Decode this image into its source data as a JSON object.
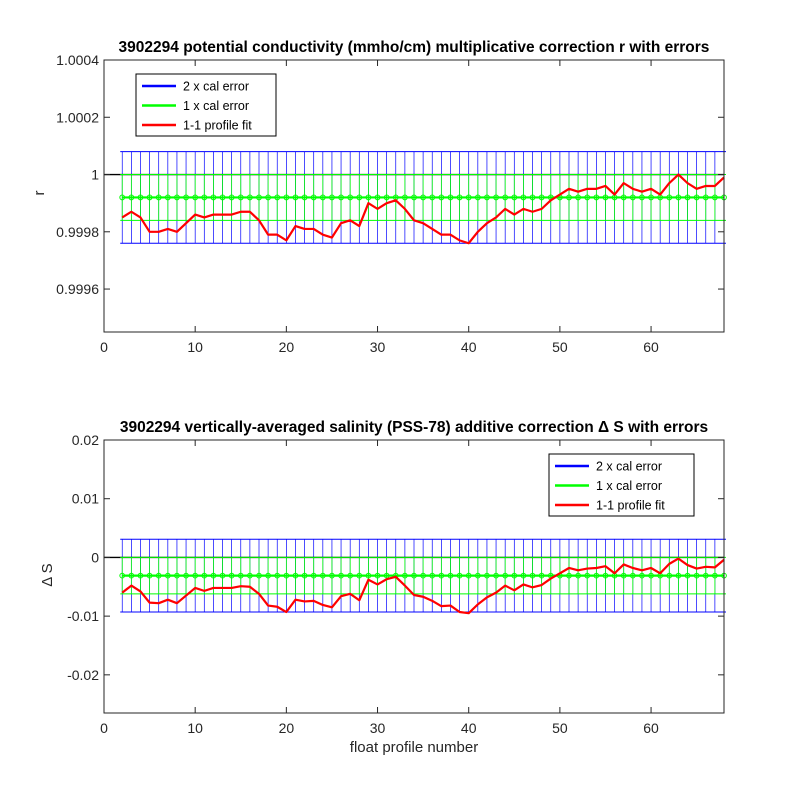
{
  "chart_data": [
    {
      "type": "line",
      "title": "3902294 potential conductivity (mmho/cm) multiplicative correction r with errors",
      "xlabel": "",
      "ylabel": "r",
      "xlim": [
        0,
        68
      ],
      "ylim": [
        0.99945,
        1.0004
      ],
      "xticks": [
        0,
        10,
        20,
        30,
        40,
        50,
        60
      ],
      "yticks": [
        0.9996,
        0.9998,
        1,
        1.0002,
        1.0004
      ],
      "ytick_labels": [
        "0.9996",
        "0.9998",
        "1",
        "1.0002",
        "1.0004"
      ],
      "reference_line": 1,
      "legend_position": "top-left",
      "legend": [
        "2 x cal error",
        "1 x cal error",
        "1-1 profile fit"
      ],
      "error_band": {
        "x_range": [
          2,
          68
        ],
        "center": 0.99992,
        "two_x_half_width": 0.00016,
        "one_x_half_width": 8e-05
      },
      "series": [
        {
          "name": "1-1 profile fit",
          "color": "#ff0000",
          "x": [
            2,
            3,
            4,
            5,
            6,
            7,
            8,
            9,
            10,
            11,
            12,
            13,
            14,
            15,
            16,
            17,
            18,
            19,
            20,
            21,
            22,
            23,
            24,
            25,
            26,
            27,
            28,
            29,
            30,
            31,
            32,
            33,
            34,
            35,
            36,
            37,
            38,
            39,
            40,
            41,
            42,
            43,
            44,
            45,
            46,
            47,
            48,
            49,
            50,
            51,
            52,
            53,
            54,
            55,
            56,
            57,
            58,
            59,
            60,
            61,
            62,
            63,
            64,
            65,
            66,
            67,
            68
          ],
          "y": [
            0.99985,
            0.99987,
            0.99985,
            0.9998,
            0.9998,
            0.99981,
            0.9998,
            0.99983,
            0.99986,
            0.99985,
            0.99986,
            0.99986,
            0.99986,
            0.99987,
            0.99987,
            0.99984,
            0.99979,
            0.99979,
            0.99977,
            0.99982,
            0.99981,
            0.99981,
            0.99979,
            0.99978,
            0.99983,
            0.99984,
            0.99982,
            0.9999,
            0.99988,
            0.9999,
            0.99991,
            0.99988,
            0.99984,
            0.99983,
            0.99981,
            0.99979,
            0.99979,
            0.99977,
            0.99976,
            0.9998,
            0.99983,
            0.99985,
            0.99988,
            0.99986,
            0.99988,
            0.99987,
            0.99988,
            0.99991,
            0.99993,
            0.99995,
            0.99994,
            0.99995,
            0.99995,
            0.99996,
            0.99993,
            0.99997,
            0.99995,
            0.99994,
            0.99995,
            0.99993,
            0.99997,
            1.0,
            0.99997,
            0.99995,
            0.99996,
            0.99996,
            0.99999
          ]
        },
        {
          "name": "1 x cal error",
          "color": "#00ff00"
        },
        {
          "name": "2 x cal error",
          "color": "#0000ff"
        }
      ]
    },
    {
      "type": "line",
      "title": "3902294 vertically-averaged salinity (PSS-78) additive correction Δ S with errors",
      "xlabel": "float profile number",
      "ylabel": "Δ S",
      "xlim": [
        0,
        68
      ],
      "ylim": [
        -0.0265,
        0.02
      ],
      "xticks": [
        0,
        10,
        20,
        30,
        40,
        50,
        60
      ],
      "yticks": [
        -0.02,
        -0.01,
        0,
        0.01,
        0.02
      ],
      "ytick_labels": [
        "-0.02",
        "-0.01",
        "0",
        "0.01",
        "0.02"
      ],
      "reference_line": 0,
      "legend_position": "top-right",
      "legend": [
        "2 x cal error",
        "1 x cal error",
        "1-1 profile fit"
      ],
      "error_band": {
        "x_range": [
          2,
          68
        ],
        "center": -0.0031,
        "two_x_half_width": 0.0062,
        "one_x_half_width": 0.0031
      },
      "series": [
        {
          "name": "1-1 profile fit",
          "color": "#ff0000",
          "x": [
            2,
            3,
            4,
            5,
            6,
            7,
            8,
            9,
            10,
            11,
            12,
            13,
            14,
            15,
            16,
            17,
            18,
            19,
            20,
            21,
            22,
            23,
            24,
            25,
            26,
            27,
            28,
            29,
            30,
            31,
            32,
            33,
            34,
            35,
            36,
            37,
            38,
            39,
            40,
            41,
            42,
            43,
            44,
            45,
            46,
            47,
            48,
            49,
            50,
            51,
            52,
            53,
            54,
            55,
            56,
            57,
            58,
            59,
            60,
            61,
            62,
            63,
            64,
            65,
            66,
            67,
            68
          ],
          "y": [
            -0.006,
            -0.0048,
            -0.0058,
            -0.0077,
            -0.0078,
            -0.0072,
            -0.0078,
            -0.0065,
            -0.0052,
            -0.0057,
            -0.0052,
            -0.0052,
            -0.0052,
            -0.0049,
            -0.005,
            -0.0062,
            -0.0082,
            -0.0084,
            -0.0093,
            -0.0072,
            -0.0075,
            -0.0074,
            -0.0081,
            -0.0085,
            -0.0066,
            -0.0062,
            -0.0073,
            -0.0038,
            -0.0046,
            -0.0037,
            -0.0033,
            -0.0048,
            -0.0064,
            -0.0067,
            -0.0074,
            -0.0083,
            -0.0082,
            -0.0093,
            -0.0095,
            -0.008,
            -0.0068,
            -0.006,
            -0.0048,
            -0.0056,
            -0.0046,
            -0.0051,
            -0.0047,
            -0.0036,
            -0.0027,
            -0.0018,
            -0.0022,
            -0.0019,
            -0.0018,
            -0.0015,
            -0.0027,
            -0.0012,
            -0.0018,
            -0.0022,
            -0.0018,
            -0.0027,
            -0.0011,
            -0.0002,
            -0.0013,
            -0.0019,
            -0.0016,
            -0.0017,
            -0.0004
          ]
        },
        {
          "name": "1 x cal error",
          "color": "#00ff00"
        },
        {
          "name": "2 x cal error",
          "color": "#0000ff"
        }
      ]
    }
  ]
}
